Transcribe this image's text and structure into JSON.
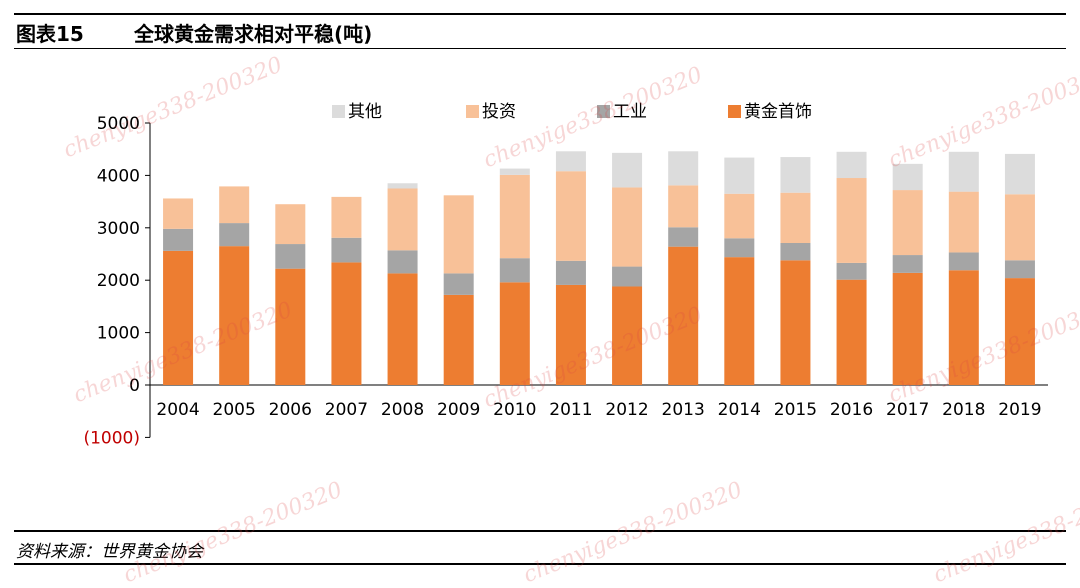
{
  "header": {
    "figure_label": "图表15",
    "title": "全球黄金需求相对平稳(吨)"
  },
  "source": "资料来源：世界黄金协会",
  "watermark_text": "chenyige338-200320",
  "colors": {
    "jewelry": "#ED7D31",
    "industry": "#A5A5A5",
    "investment": "#F8C198",
    "other": "#DCDCDC",
    "negative_tick": "#C00000"
  },
  "chart_data": {
    "type": "bar",
    "stacked": true,
    "categories": [
      "2004",
      "2005",
      "2006",
      "2007",
      "2008",
      "2009",
      "2010",
      "2011",
      "2012",
      "2013",
      "2014",
      "2015",
      "2016",
      "2017",
      "2018",
      "2019"
    ],
    "series": [
      {
        "name": "黄金首饰",
        "key": "jewelry",
        "values": [
          2560,
          2650,
          2220,
          2340,
          2130,
          1720,
          1960,
          1910,
          1880,
          2640,
          2440,
          2380,
          2010,
          2140,
          2190,
          2040
        ]
      },
      {
        "name": "工业",
        "key": "industry",
        "values": [
          420,
          440,
          470,
          470,
          440,
          410,
          460,
          460,
          380,
          370,
          360,
          330,
          320,
          340,
          340,
          340
        ]
      },
      {
        "name": "投资",
        "key": "investment",
        "values": [
          580,
          700,
          760,
          780,
          1180,
          1490,
          1590,
          1710,
          1510,
          800,
          850,
          960,
          1620,
          1240,
          1160,
          1260
        ]
      },
      {
        "name": "其他",
        "key": "other",
        "values": [
          0,
          0,
          0,
          0,
          100,
          0,
          120,
          380,
          660,
          650,
          690,
          680,
          500,
          500,
          760,
          770
        ]
      }
    ],
    "ylim": [
      -1000,
      5000
    ],
    "yticks": [
      5000,
      4000,
      3000,
      2000,
      1000,
      0,
      -1000
    ],
    "ytick_labels": [
      "5000",
      "4000",
      "3000",
      "2000",
      "1000",
      "0",
      "(1000)"
    ],
    "legend_position": "top",
    "grid": false
  }
}
